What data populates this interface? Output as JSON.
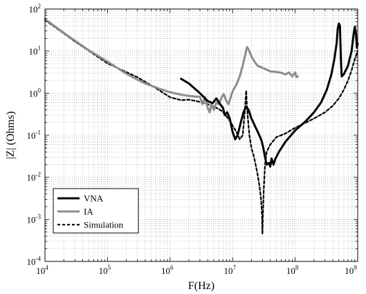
{
  "chart_data": {
    "type": "line",
    "xscale": "log",
    "yscale": "log",
    "xlabel": "F(Hz)",
    "ylabel": "|Z| (Ohms)",
    "xlim": [
      10000,
      1000000000
    ],
    "ylim": [
      0.0001,
      100
    ],
    "grid": "on",
    "legend_position": "lower-left",
    "x_ticks": [
      {
        "base": "10",
        "exp": "4"
      },
      {
        "base": "10",
        "exp": "5"
      },
      {
        "base": "10",
        "exp": "6"
      },
      {
        "base": "10",
        "exp": "7"
      },
      {
        "base": "10",
        "exp": "8"
      },
      {
        "base": "10",
        "exp": "9"
      }
    ],
    "y_ticks": [
      {
        "base": "10",
        "exp": "-4"
      },
      {
        "base": "10",
        "exp": "-3"
      },
      {
        "base": "10",
        "exp": "-2"
      },
      {
        "base": "10",
        "exp": "-1"
      },
      {
        "base": "10",
        "exp": "0"
      },
      {
        "base": "10",
        "exp": "1"
      },
      {
        "base": "10",
        "exp": "2"
      }
    ],
    "series": [
      {
        "name": "VNA",
        "color": "#000000",
        "style": "solid",
        "width": 3,
        "points": [
          [
            1500000,
            2.2
          ],
          [
            2000000,
            1.7
          ],
          [
            3000000,
            1.0
          ],
          [
            4000000,
            0.65
          ],
          [
            4800000,
            0.58
          ],
          [
            5500000,
            0.75
          ],
          [
            6300000,
            0.55
          ],
          [
            7000000,
            0.45
          ],
          [
            7500000,
            0.3
          ],
          [
            8200000,
            0.35
          ],
          [
            9000000,
            0.25
          ],
          [
            10000000,
            0.12
          ],
          [
            11000000,
            0.08
          ],
          [
            12000000,
            0.1
          ],
          [
            13500000,
            0.2
          ],
          [
            15000000,
            0.36
          ],
          [
            16500000,
            0.48
          ],
          [
            18000000,
            0.4
          ],
          [
            20000000,
            0.25
          ],
          [
            23000000,
            0.16
          ],
          [
            26000000,
            0.11
          ],
          [
            29000000,
            0.075
          ],
          [
            31000000,
            0.05
          ],
          [
            33000000,
            0.03
          ],
          [
            35000000,
            0.02
          ],
          [
            38000000,
            0.022
          ],
          [
            40000000,
            0.018
          ],
          [
            42000000,
            0.028
          ],
          [
            45000000,
            0.02
          ],
          [
            48000000,
            0.027
          ],
          [
            55000000,
            0.04
          ],
          [
            70000000,
            0.07
          ],
          [
            100000000,
            0.13
          ],
          [
            150000000,
            0.22
          ],
          [
            200000000,
            0.35
          ],
          [
            260000000,
            0.6
          ],
          [
            320000000,
            1.2
          ],
          [
            380000000,
            2.8
          ],
          [
            420000000,
            6
          ],
          [
            460000000,
            15
          ],
          [
            480000000,
            35
          ],
          [
            500000000,
            45
          ],
          [
            520000000,
            40
          ],
          [
            540000000,
            6
          ],
          [
            555000000,
            2.5
          ],
          [
            600000000,
            2.8
          ],
          [
            700000000,
            4.5
          ],
          [
            800000000,
            10
          ],
          [
            860000000,
            25
          ],
          [
            900000000,
            38
          ],
          [
            940000000,
            25
          ],
          [
            970000000,
            12
          ],
          [
            1000000000,
            15
          ]
        ]
      },
      {
        "name": "IA",
        "color": "#8c8c8c",
        "style": "solid",
        "width": 3,
        "points": [
          [
            10000,
            58
          ],
          [
            20000,
            27
          ],
          [
            50000,
            10.5
          ],
          [
            100000,
            5.6
          ],
          [
            200000,
            2.9
          ],
          [
            300000,
            2.1
          ],
          [
            400000,
            1.7
          ],
          [
            500000,
            1.5
          ],
          [
            700000,
            1.25
          ],
          [
            1000000,
            1.05
          ],
          [
            1500000,
            0.92
          ],
          [
            2000000,
            0.86
          ],
          [
            2500000,
            0.83
          ],
          [
            3000000,
            0.82
          ],
          [
            3300000,
            0.55
          ],
          [
            3600000,
            0.8
          ],
          [
            4000000,
            0.45
          ],
          [
            4300000,
            0.35
          ],
          [
            4600000,
            0.55
          ],
          [
            5000000,
            0.4
          ],
          [
            5500000,
            0.6
          ],
          [
            6000000,
            0.55
          ],
          [
            6700000,
            0.8
          ],
          [
            7200000,
            0.95
          ],
          [
            7800000,
            0.7
          ],
          [
            8200000,
            0.6
          ],
          [
            8600000,
            0.55
          ],
          [
            9200000,
            0.75
          ],
          [
            10000000,
            1.1
          ],
          [
            11500000,
            1.6
          ],
          [
            13000000,
            2.5
          ],
          [
            14500000,
            4.5
          ],
          [
            16000000,
            8.5
          ],
          [
            17000000,
            12.5
          ],
          [
            18000000,
            11
          ],
          [
            20000000,
            7.5
          ],
          [
            22000000,
            5.8
          ],
          [
            25000000,
            4.5
          ],
          [
            30000000,
            4
          ],
          [
            40000000,
            3.3
          ],
          [
            50000000,
            3.2
          ],
          [
            60000000,
            3.05
          ],
          [
            70000000,
            2.8
          ],
          [
            80000000,
            3.1
          ],
          [
            90000000,
            2.5
          ],
          [
            100000000,
            3.1
          ],
          [
            105000000,
            2.4
          ],
          [
            110000000,
            2.5
          ]
        ]
      },
      {
        "name": "Simulation",
        "color": "#000000",
        "style": "dashed",
        "width": 2.2,
        "points": [
          [
            10000,
            55
          ],
          [
            30000,
            17
          ],
          [
            100000,
            5.1
          ],
          [
            300000,
            2.4
          ],
          [
            600000,
            1.3
          ],
          [
            1000000,
            0.8
          ],
          [
            1500000,
            0.68
          ],
          [
            2000000,
            0.7
          ],
          [
            3000000,
            0.62
          ],
          [
            4000000,
            0.55
          ],
          [
            5000000,
            0.48
          ],
          [
            6000000,
            0.42
          ],
          [
            7000000,
            0.36
          ],
          [
            8000000,
            0.28
          ],
          [
            9000000,
            0.22
          ],
          [
            10000000,
            0.17
          ],
          [
            11500000,
            0.12
          ],
          [
            13000000,
            0.08
          ],
          [
            14500000,
            0.1
          ],
          [
            15500000,
            0.3
          ],
          [
            16500000,
            1.15
          ],
          [
            17000000,
            0.45
          ],
          [
            18500000,
            0.1
          ],
          [
            20000000,
            0.05
          ],
          [
            22000000,
            0.03
          ],
          [
            25000000,
            0.012
          ],
          [
            27000000,
            0.006
          ],
          [
            28500000,
            0.003
          ],
          [
            29500000,
            0.0012
          ],
          [
            30000000,
            0.00045
          ],
          [
            30500000,
            0.0012
          ],
          [
            31500000,
            0.005
          ],
          [
            33000000,
            0.02
          ],
          [
            35000000,
            0.04
          ],
          [
            40000000,
            0.06
          ],
          [
            50000000,
            0.09
          ],
          [
            70000000,
            0.11
          ],
          [
            100000000,
            0.15
          ],
          [
            150000000,
            0.2
          ],
          [
            200000000,
            0.25
          ],
          [
            300000000,
            0.35
          ],
          [
            400000000,
            0.5
          ],
          [
            500000000,
            0.75
          ],
          [
            600000000,
            1.2
          ],
          [
            700000000,
            2
          ],
          [
            800000000,
            3.5
          ],
          [
            900000000,
            6.5
          ],
          [
            1000000000,
            10
          ]
        ]
      }
    ],
    "legend": [
      {
        "label": "VNA",
        "color": "#000000",
        "style": "solid"
      },
      {
        "label": "IA",
        "color": "#8c8c8c",
        "style": "solid"
      },
      {
        "label": "Simulation",
        "color": "#000000",
        "style": "dashed"
      }
    ]
  }
}
